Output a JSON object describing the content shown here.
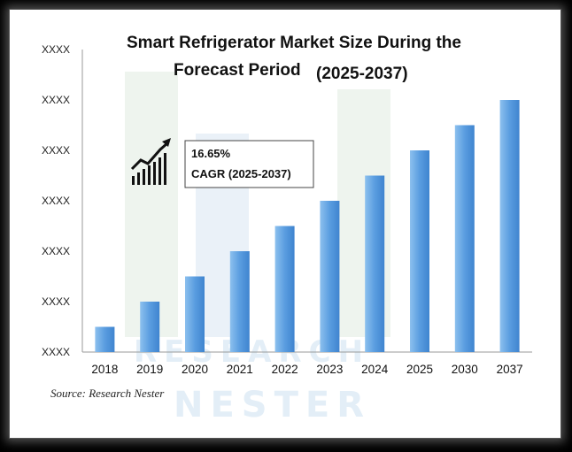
{
  "chart_data": {
    "type": "bar",
    "title_line1": "Smart Refrigerator Market Size During the",
    "title_line2": "Forecast Period",
    "title_period": "(2025-2037)",
    "categories": [
      "2018",
      "2019",
      "2020",
      "2021",
      "2022",
      "2023",
      "2024",
      "2025",
      "2030",
      "2037"
    ],
    "values": [
      1,
      2,
      3,
      4,
      5,
      6,
      7,
      8,
      9,
      10
    ],
    "yticks": [
      "XXXX",
      "XXXX",
      "XXXX",
      "XXXX",
      "XXXX",
      "XXXX",
      "XXXX"
    ],
    "ylim": [
      0,
      12
    ],
    "grid": false,
    "bar_color_light": "#7fb6e8",
    "bar_color_dark": "#4a8fd6",
    "axis_color": "#9a9a9a"
  },
  "annotation": {
    "cagr_value": "16.65%",
    "cagr_label": "CAGR (2025-2037)"
  },
  "source": "Source: Research Nester",
  "watermark": {
    "line1": "RESEARCH",
    "line2": "NESTER"
  }
}
